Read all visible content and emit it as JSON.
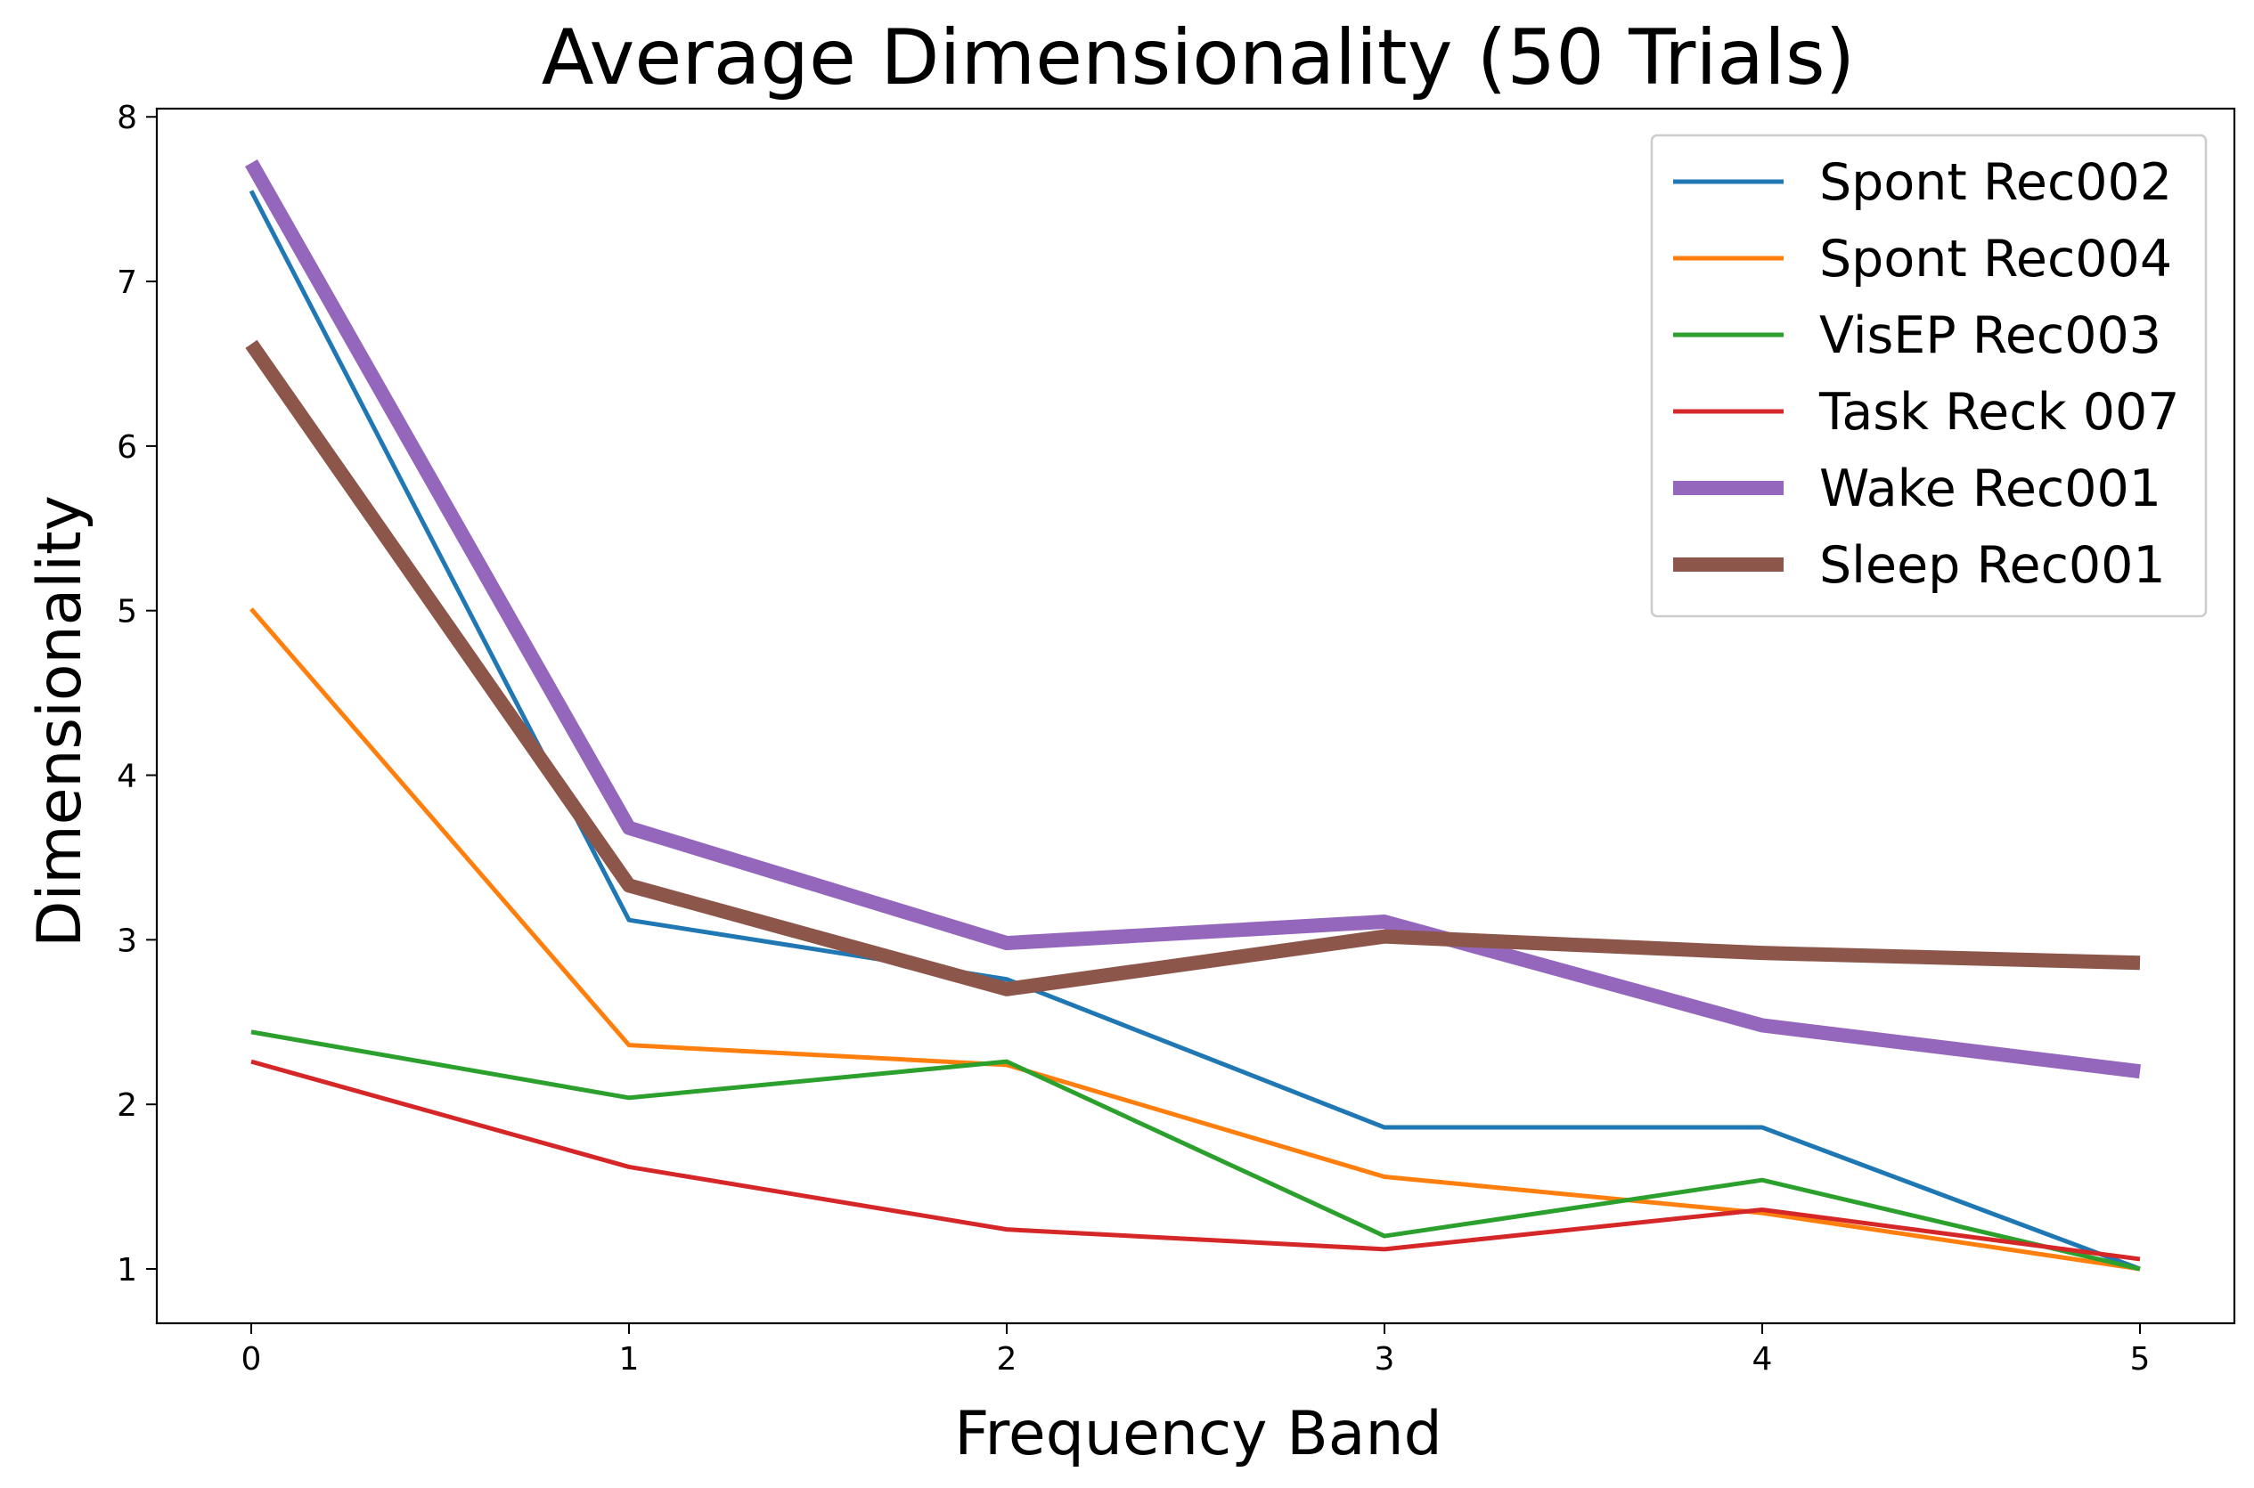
{
  "chart_data": {
    "type": "line",
    "title": "Average Dimensionality (50 Trials)",
    "xlabel": "Frequency Band",
    "ylabel": "Dimensionality",
    "x": [
      0,
      1,
      2,
      3,
      4,
      5
    ],
    "xticks": [
      "0",
      "1",
      "2",
      "3",
      "4",
      "5"
    ],
    "yticks": [
      "1",
      "2",
      "3",
      "4",
      "5",
      "6",
      "7",
      "8"
    ],
    "xlim": [
      -0.25,
      5.25
    ],
    "ylim": [
      0.67,
      8.05
    ],
    "grid": false,
    "legend_position": "top-right",
    "series": [
      {
        "name": "Spont Rec002",
        "color": "#1f77b4",
        "thick": false,
        "values": [
          7.55,
          3.12,
          2.76,
          1.86,
          1.86,
          1.0
        ]
      },
      {
        "name": "Spont Rec004",
        "color": "#ff7f0e",
        "thick": false,
        "values": [
          5.01,
          2.36,
          2.24,
          1.56,
          1.34,
          1.0
        ]
      },
      {
        "name": "VisEP Rec003",
        "color": "#2ca02c",
        "thick": false,
        "values": [
          2.44,
          2.04,
          2.26,
          1.2,
          1.54,
          1.0
        ]
      },
      {
        "name": "Task Reck 007",
        "color": "#d62728",
        "thick": false,
        "values": [
          2.26,
          1.62,
          1.24,
          1.12,
          1.36,
          1.06
        ]
      },
      {
        "name": "Wake Rec001",
        "color": "#9467bd",
        "thick": true,
        "values": [
          7.72,
          3.68,
          2.98,
          3.11,
          2.48,
          2.2
        ]
      },
      {
        "name": "Sleep Rec001",
        "color": "#8c564b",
        "thick": true,
        "values": [
          6.62,
          3.33,
          2.7,
          3.02,
          2.92,
          2.86
        ]
      }
    ]
  }
}
